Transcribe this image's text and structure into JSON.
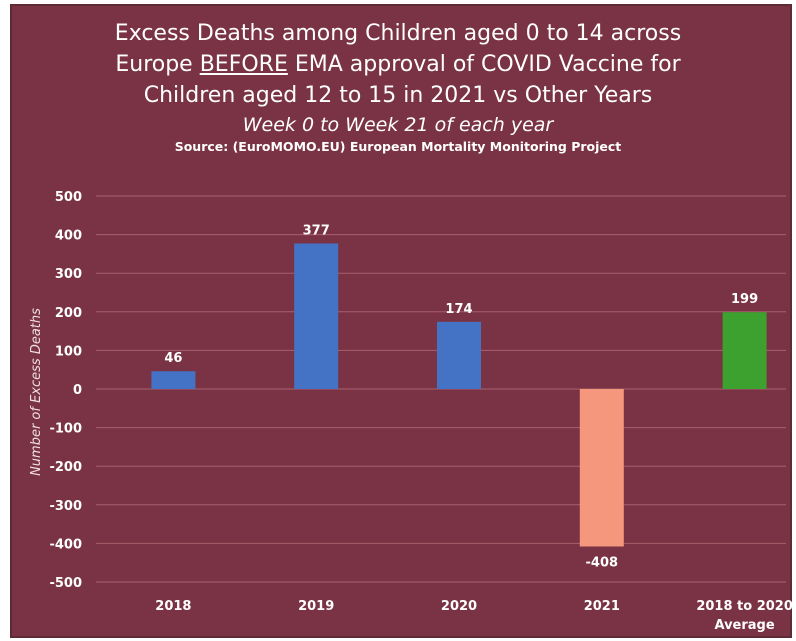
{
  "chart_data": {
    "type": "bar",
    "title_parts": {
      "line1": "Excess Deaths among Children aged 0 to 14 across",
      "line2_before": "Europe ",
      "line2_emph": "BEFORE",
      "line2_after": " EMA approval of COVID Vaccine for",
      "line3": "Children aged 12 to 15 in 2021 vs Other Years"
    },
    "subtitle": "Week 0 to Week 21 of each year",
    "source": "Source: (EuroMOMO.EU) European Mortality Monitoring Project",
    "ylabel": "Number of Excess Deaths",
    "xlabel": "",
    "ylim": [
      -500,
      500
    ],
    "yticks": [
      500,
      400,
      300,
      200,
      100,
      0,
      -100,
      -200,
      -300,
      -400,
      -500
    ],
    "grid": true,
    "categories": [
      [
        "2018"
      ],
      [
        "2019"
      ],
      [
        "2020"
      ],
      [
        "2021"
      ],
      [
        "2018 to 2020",
        "Average"
      ]
    ],
    "values": [
      46,
      377,
      174,
      -408,
      199
    ],
    "data_labels": [
      "46",
      "377",
      "174",
      "-408",
      "199"
    ],
    "colors": [
      "#4472c4",
      "#4472c4",
      "#4472c4",
      "#f4977d",
      "#3ca12f"
    ]
  },
  "colors": {
    "background": "#7a3344",
    "gridline": "#a8606e",
    "text": "#ffffff"
  }
}
